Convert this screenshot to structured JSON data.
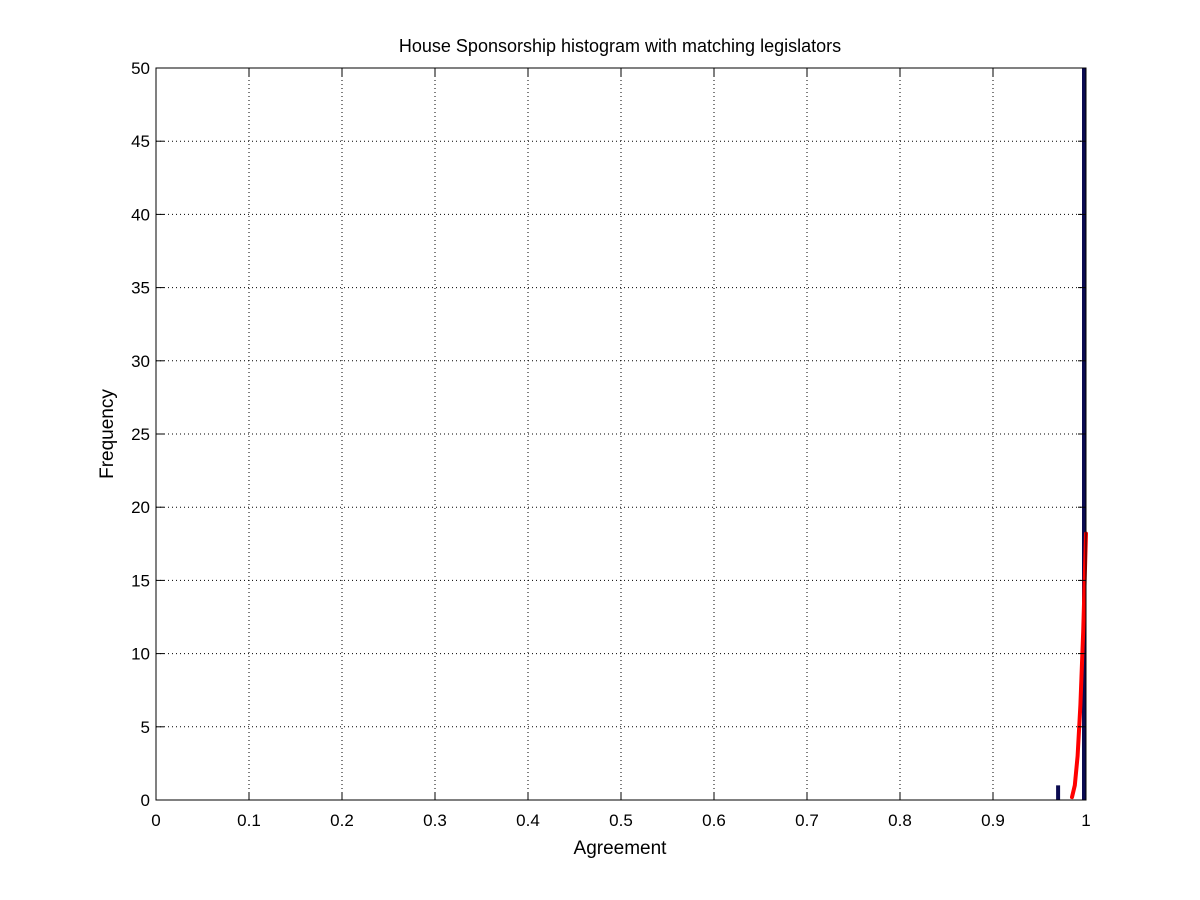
{
  "chart_data": {
    "type": "bar",
    "title": "House Sponsorship histogram with matching legislators",
    "xlabel": "Agreement",
    "ylabel": "Frequency",
    "xlim": [
      0,
      1
    ],
    "ylim": [
      0,
      50
    ],
    "xticks": [
      "0",
      "0.1",
      "0.2",
      "0.3",
      "0.4",
      "0.5",
      "0.6",
      "0.7",
      "0.8",
      "0.9",
      "1"
    ],
    "yticks": [
      "0",
      "5",
      "10",
      "15",
      "20",
      "25",
      "30",
      "35",
      "40",
      "45",
      "50"
    ],
    "grid": true,
    "bar_color": "#0a0a50",
    "bars": [
      {
        "x": 0.97,
        "value": 1
      },
      {
        "x": 1.0,
        "value": 50
      }
    ],
    "fit_curve": {
      "color": "#ff0000",
      "points": [
        [
          0.985,
          0.2
        ],
        [
          0.988,
          1.0
        ],
        [
          0.991,
          3.0
        ],
        [
          0.994,
          6.5
        ],
        [
          0.997,
          11.5
        ],
        [
          1.0,
          18.2
        ]
      ]
    }
  }
}
